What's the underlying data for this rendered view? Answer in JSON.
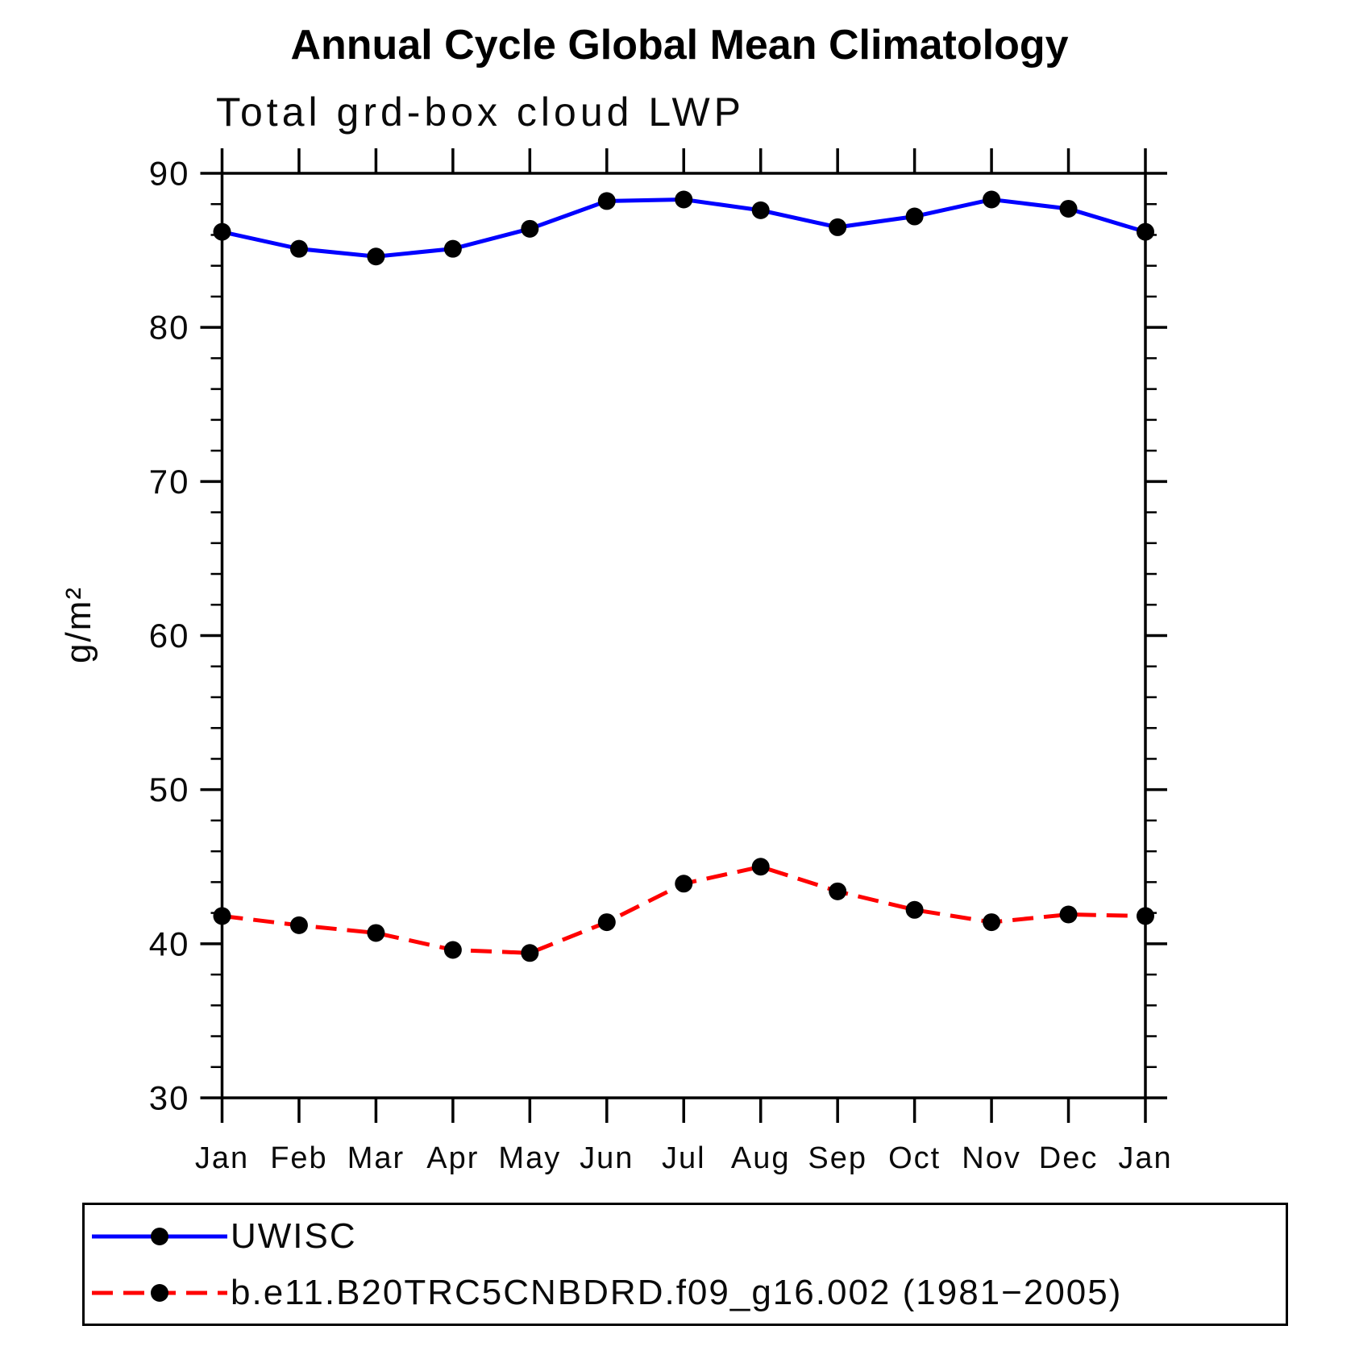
{
  "title": "Annual Cycle Global Mean Climatology",
  "subtitle": "Total grd-box cloud LWP",
  "chart_data": {
    "type": "line",
    "categories": [
      "Jan",
      "Feb",
      "Mar",
      "Apr",
      "May",
      "Jun",
      "Jul",
      "Aug",
      "Sep",
      "Oct",
      "Nov",
      "Dec",
      "Jan"
    ],
    "series": [
      {
        "name": "UWISC",
        "color": "#0000ff",
        "line_style": "solid",
        "marker": "filled-black-circle",
        "values": [
          86.2,
          85.1,
          84.6,
          85.1,
          86.4,
          88.2,
          88.3,
          87.6,
          86.5,
          87.2,
          88.3,
          87.7,
          86.2
        ]
      },
      {
        "name": "b.e11.B20TRC5CNBDRD.f09_g16.002 (1981−2005)",
        "color": "#ff0000",
        "line_style": "dashed",
        "marker": "filled-black-circle",
        "values": [
          41.8,
          41.2,
          40.7,
          39.6,
          39.4,
          41.4,
          43.9,
          45.0,
          43.4,
          42.2,
          41.4,
          41.9,
          41.8
        ]
      }
    ],
    "xlabel": "",
    "ylabel": "g/m²",
    "ylim": [
      30,
      90
    ],
    "y_major_ticks": [
      30,
      40,
      50,
      60,
      70,
      80,
      90
    ],
    "y_minor_step": 2,
    "grid": false,
    "legend_position": "bottom",
    "axis_color": "#000000",
    "marker_color": "#000000"
  }
}
